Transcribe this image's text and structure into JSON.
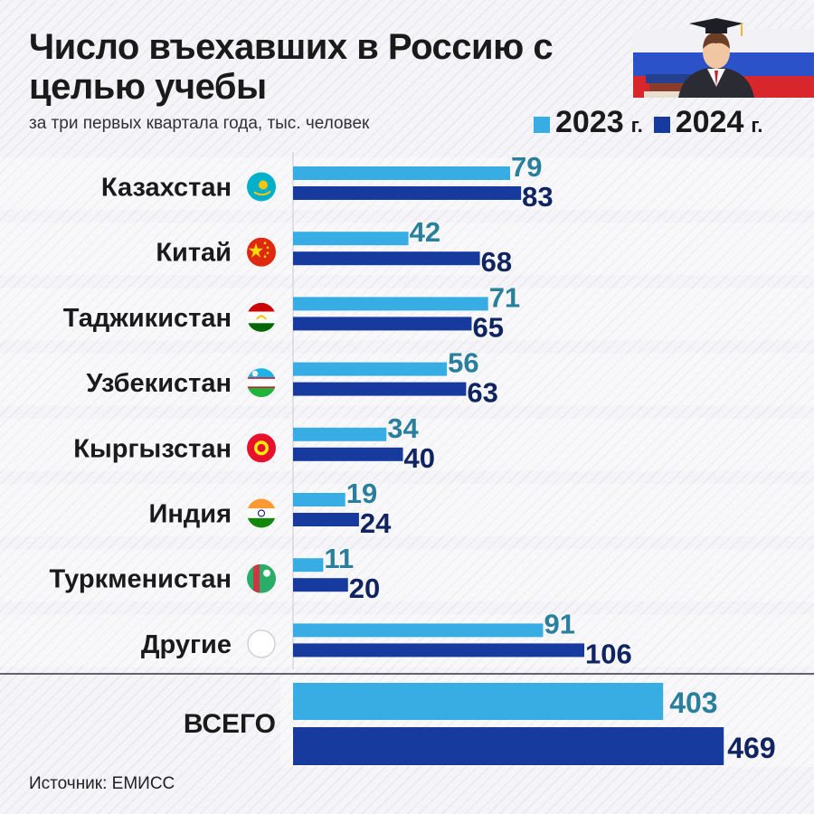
{
  "title": "Число въехавших в Россию с целью учебы",
  "subtitle": "за три первых квартала года, тыс. человек",
  "source": "Источник: ЕМИСС",
  "legend": [
    {
      "label": "2023",
      "suffix": "г.",
      "color": "#38ade3"
    },
    {
      "label": "2024",
      "suffix": "г.",
      "color": "#163a9e"
    }
  ],
  "colors": {
    "series_2023": "#38ade3",
    "series_2024": "#163a9e",
    "label_2023": "#2a7f9c",
    "label_2024": "#0f2460"
  },
  "chart_data": {
    "type": "bar",
    "orientation": "horizontal",
    "categories": [
      "Казахстан",
      "Китай",
      "Таджикистан",
      "Узбекистан",
      "Кыргызстан",
      "Индия",
      "Туркменистан",
      "Другие"
    ],
    "flag_icons": [
      "kazakhstan-flag-icon",
      "china-flag-icon",
      "tajikistan-flag-icon",
      "uzbekistan-flag-icon",
      "kyrgyzstan-flag-icon",
      "india-flag-icon",
      "turkmenistan-flag-icon",
      "other-circle-icon"
    ],
    "series": [
      {
        "name": "2023 г.",
        "values": [
          79,
          42,
          71,
          56,
          34,
          19,
          11,
          91
        ]
      },
      {
        "name": "2024 г.",
        "values": [
          83,
          68,
          65,
          63,
          40,
          24,
          20,
          106
        ]
      }
    ],
    "total": {
      "label": "ВСЕГО",
      "values": [
        403,
        469
      ]
    },
    "xlim": [
      0,
      106
    ],
    "grid": false,
    "legend_position": "top-right"
  }
}
